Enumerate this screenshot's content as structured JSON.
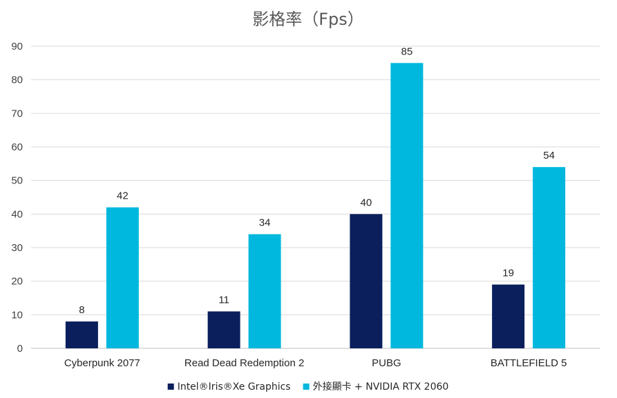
{
  "chart_data": {
    "type": "bar",
    "title": "影格率（Fps）",
    "categories": [
      "Cyberpunk 2077",
      "Read Dead Redemption 2",
      "PUBG",
      "BATTLEFIELD 5"
    ],
    "series": [
      {
        "name": "Intel®Iris®Xe Graphics",
        "values": [
          8,
          11,
          40,
          19
        ],
        "color": "#0a1f5c"
      },
      {
        "name": "外接顯卡 + NVIDIA RTX 2060",
        "values": [
          42,
          34,
          85,
          54
        ],
        "color": "#00b8de"
      }
    ],
    "ylim": [
      0,
      90
    ],
    "yticks": [
      0,
      10,
      20,
      30,
      40,
      50,
      60,
      70,
      80,
      90
    ],
    "grid": true,
    "legend_position": "bottom"
  }
}
